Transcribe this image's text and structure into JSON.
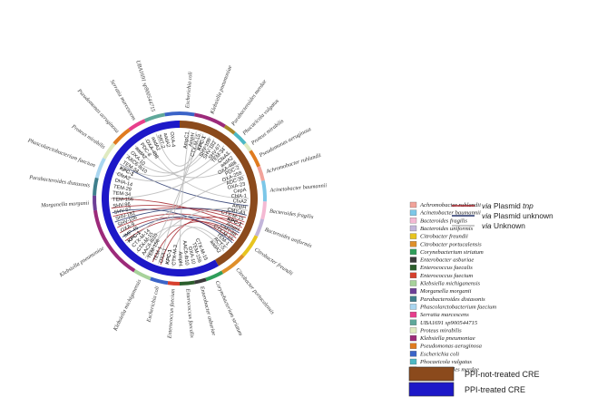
{
  "colors": {
    "not_treated": "#8b4a1c",
    "treated": "#1d18c8",
    "link_tnp": "#a3232a",
    "link_plasmid_unknown": "#24346b",
    "link_unknown": "#b8b8b8"
  },
  "genes_not_treated": [
    "AmpC1",
    "AmpH",
    "CTX-M-15",
    "KPC-1",
    "SHV-106",
    "SHV-182",
    "SHV-67",
    "TEM-34",
    "CfxA3",
    "aadA2",
    "OXA-488",
    "PDC-2",
    "OXA-258",
    "ADC-30",
    "OXA-23",
    "CepA",
    "CblA-1",
    "CfxA2",
    "AmpH",
    "CMY-43",
    "CTX-M-15",
    "KPC-1",
    "AmpH",
    "CMY-88",
    "CTX-M-15",
    "TEM-1",
    "ACT-5",
    "aadA2"
  ],
  "genes_treated": [
    "CTX-M-15",
    "TEM-156",
    "OXA-10",
    "AAC6-Ib10",
    "AmpH",
    "CTX-M-3",
    "KPC-1",
    "OXA-1",
    "TEM-1",
    "TEM-156",
    "AAC6-Ib10",
    "CTX-M-15",
    "CTX-M-14",
    "KPC-1",
    "IMP-45",
    "OXA-9",
    "SHV-106",
    "SHV-182",
    "SHV-67",
    "SHV-96",
    "TEM-156",
    "TEM-34",
    "TEM-29",
    "DHA-14",
    "CfxA2",
    "KPC-1",
    "TEM-34",
    "AAC6-Ib10",
    "OXA-10",
    "aadA2",
    "PDC-8",
    "OXA-488",
    "aadA2",
    "SRT-2",
    "aadA2",
    "OXA-4"
  ],
  "species_labels": [
    "Escherichia coli",
    "Klebsiella pneumoniae",
    "Parabacteroides merdae",
    "Phocaeicola vulgatus",
    "Proteus mirabilis",
    "Pseudomonas aeruginosa",
    "Achromobacter ruhlandii",
    "Acinetobacter baumannii",
    "Bacteroides fragilis",
    "Bacteroides uniformis",
    "Citrobacter freundii",
    "Citrobacter portucalensis",
    "Corynebacterium striatum",
    "Enterobacter asburiae",
    "Enterococcus faecalis",
    "Enterococcus faecium",
    "Escherichia coli",
    "Klebsiella michiganensis",
    "Klebsiella pneumoniae",
    "Morganella morganii",
    "Parabacteroides distasonis",
    "Phascolarctobacterium faecium",
    "Proteus mirabilis",
    "Pseudomonas aeruginosa",
    "Serratia marcescens",
    "UBA1691 sp900544715"
  ],
  "species_legend": [
    {
      "name": "Achromobacter ruhlandii",
      "color": "#f2a39a"
    },
    {
      "name": "Acinetobacter baumannii",
      "color": "#7cc7e8"
    },
    {
      "name": "Bacteroides fragilis",
      "color": "#f4b9d3"
    },
    {
      "name": "Bacteroides uniformis",
      "color": "#c2b5da"
    },
    {
      "name": "Citrobacter freundii",
      "color": "#e7c41f"
    },
    {
      "name": "Citrobacter portucalensis",
      "color": "#df8f2a"
    },
    {
      "name": "Corynebacterium striatum",
      "color": "#2f9e5a"
    },
    {
      "name": "Enterobacter asburiae",
      "color": "#3a3a3a"
    },
    {
      "name": "Enterococcus faecalis",
      "color": "#2c5e2c"
    },
    {
      "name": "Enterococcus faecium",
      "color": "#d7402e"
    },
    {
      "name": "Klebsiella michiganensis",
      "color": "#a7d29a"
    },
    {
      "name": "Morganella morganii",
      "color": "#6c3f96"
    },
    {
      "name": "Parabacteroides distasonis",
      "color": "#3f7f8c"
    },
    {
      "name": "Phascolarctobacterium faecium",
      "color": "#a9d6f0"
    },
    {
      "name": "Serratia marcescens",
      "color": "#e83e8c"
    },
    {
      "name": "UBA1691 sp900544715",
      "color": "#5fa89a"
    },
    {
      "name": "Proteus mirabilis",
      "color": "#dfeac0"
    },
    {
      "name": "Klebsiella pneumoniae",
      "color": "#9c2a7a"
    },
    {
      "name": "Pseudomonas aeruginosa",
      "color": "#e07b1f"
    },
    {
      "name": "Escherichia coli",
      "color": "#3b64c8"
    },
    {
      "name": "Phocaeicola vulgatus",
      "color": "#4cb8c4"
    },
    {
      "name": "Parabacteroides merdae",
      "color": "#a7862a"
    }
  ],
  "link_legend": [
    {
      "via": "via",
      "name": "Plasmid",
      "suffix": "tnp"
    },
    {
      "via": "via",
      "name": "Plasmid unknown",
      "suffix": ""
    },
    {
      "via": "via",
      "name": "Unknown",
      "suffix": ""
    }
  ],
  "treatment_legend": [
    {
      "label": "PPI-not-treated CRE"
    },
    {
      "label": "PPI-treated CRE"
    }
  ]
}
